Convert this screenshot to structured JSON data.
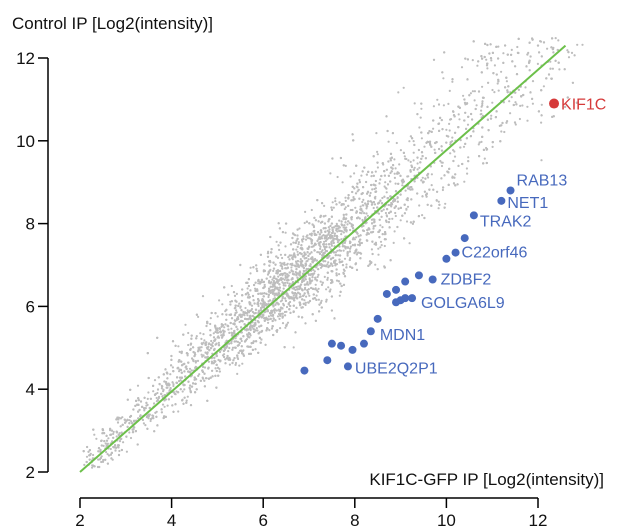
{
  "chart_data": {
    "type": "scatter",
    "title": "",
    "xlabel": "KIF1C-GFP IP [Log2(intensity)]",
    "ylabel": "Control IP [Log2(intensity)]",
    "xlim": [
      1.8,
      13.1
    ],
    "ylim": [
      1.8,
      12.3
    ],
    "xticks": [
      2,
      4,
      6,
      8,
      10,
      12
    ],
    "yticks": [
      2,
      4,
      6,
      8,
      10,
      12
    ],
    "grid": false,
    "legend": "none",
    "fit_line": {
      "x": [
        2.0,
        12.6
      ],
      "y": [
        2.0,
        12.3
      ]
    },
    "background_series": {
      "name": "",
      "color": "#bdbdbd",
      "points": [
        [
          2.4,
          2.5
        ],
        [
          2.9,
          2.8
        ],
        [
          3.3,
          3.5
        ],
        [
          3.6,
          3.3
        ],
        [
          3.9,
          4.1
        ],
        [
          4.2,
          4.0
        ],
        [
          4.5,
          4.8
        ],
        [
          4.8,
          4.5
        ],
        [
          5.1,
          5.3
        ],
        [
          5.4,
          5.0
        ],
        [
          5.7,
          6.1
        ],
        [
          6.0,
          5.8
        ],
        [
          6.3,
          6.6
        ],
        [
          6.6,
          6.2
        ],
        [
          6.9,
          7.3
        ],
        [
          7.2,
          6.9
        ],
        [
          7.5,
          8.0
        ],
        [
          7.8,
          7.4
        ],
        [
          8.1,
          8.6
        ],
        [
          8.4,
          8.1
        ],
        [
          8.7,
          9.3
        ],
        [
          9.0,
          8.7
        ],
        [
          9.3,
          9.9
        ],
        [
          9.6,
          9.2
        ],
        [
          9.9,
          10.5
        ],
        [
          10.2,
          10.0
        ],
        [
          10.5,
          11.1
        ],
        [
          10.8,
          10.6
        ],
        [
          11.1,
          11.6
        ],
        [
          11.5,
          11.8
        ],
        [
          12.0,
          12.3
        ],
        [
          12.3,
          11.5
        ],
        [
          5.5,
          7.0
        ],
        [
          6.5,
          8.0
        ],
        [
          7.5,
          5.9
        ],
        [
          8.5,
          6.9
        ]
      ]
    },
    "highlight_series": {
      "name": "",
      "color": "#4769bd",
      "points": [
        {
          "x": 11.4,
          "y": 8.8,
          "label": "RAB13"
        },
        {
          "x": 11.2,
          "y": 8.55,
          "label": "NET1"
        },
        {
          "x": 10.6,
          "y": 8.2,
          "label": "TRAK2"
        },
        {
          "x": 10.4,
          "y": 7.65,
          "label": ""
        },
        {
          "x": 10.2,
          "y": 7.3,
          "label": "C22orf46"
        },
        {
          "x": 10.0,
          "y": 7.15,
          "label": ""
        },
        {
          "x": 9.7,
          "y": 6.65,
          "label": "ZDBF2"
        },
        {
          "x": 9.4,
          "y": 6.75,
          "label": ""
        },
        {
          "x": 9.1,
          "y": 6.6,
          "label": ""
        },
        {
          "x": 8.9,
          "y": 6.4,
          "label": ""
        },
        {
          "x": 8.7,
          "y": 6.3,
          "label": ""
        },
        {
          "x": 9.25,
          "y": 6.2,
          "label": "GOLGA6L9"
        },
        {
          "x": 9.1,
          "y": 6.2,
          "label": ""
        },
        {
          "x": 9.0,
          "y": 6.15,
          "label": ""
        },
        {
          "x": 8.9,
          "y": 6.1,
          "label": ""
        },
        {
          "x": 8.5,
          "y": 5.7,
          "label": ""
        },
        {
          "x": 8.35,
          "y": 5.4,
          "label": "MDN1"
        },
        {
          "x": 8.2,
          "y": 5.1,
          "label": ""
        },
        {
          "x": 7.5,
          "y": 5.1,
          "label": ""
        },
        {
          "x": 7.7,
          "y": 5.05,
          "label": ""
        },
        {
          "x": 7.95,
          "y": 4.95,
          "label": ""
        },
        {
          "x": 7.4,
          "y": 4.7,
          "label": ""
        },
        {
          "x": 7.85,
          "y": 4.55,
          "label": "UBE2Q2P1"
        },
        {
          "x": 6.9,
          "y": 4.45,
          "label": ""
        }
      ]
    },
    "target": {
      "name": "",
      "x": 12.35,
      "y": 10.9,
      "label": "KIF1C",
      "color": "#d63a3a"
    },
    "fit_color": "#6cc04a"
  }
}
